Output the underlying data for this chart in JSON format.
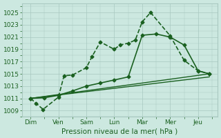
{
  "xlabel": "Pression niveau de la mer( hPa )",
  "days": [
    "Dim",
    "Ven",
    "Sam",
    "Lun",
    "Mar",
    "Mer",
    "Jeu"
  ],
  "xlim": [
    -0.3,
    6.7
  ],
  "ylim": [
    1008.0,
    1026.5
  ],
  "yticks": [
    1009,
    1011,
    1013,
    1015,
    1017,
    1019,
    1021,
    1023,
    1025
  ],
  "background_color": "#cce8e0",
  "grid_color": "#a8c8c0",
  "line_color": "#1a6020",
  "lines": [
    {
      "x": [
        0.0,
        0.2,
        0.45,
        1.0,
        1.2,
        1.5,
        2.0,
        2.2,
        2.5,
        3.0,
        3.2,
        3.5,
        3.75,
        4.0,
        4.3,
        5.0,
        5.5,
        6.0,
        6.4
      ],
      "y": [
        1011.0,
        1010.2,
        1009.2,
        1011.2,
        1014.7,
        1014.8,
        1016.0,
        1017.8,
        1020.2,
        1019.0,
        1019.7,
        1020.0,
        1020.5,
        1023.5,
        1025.0,
        1021.2,
        1017.2,
        1015.5,
        1015.0
      ],
      "color": "#1a6020",
      "linewidth": 1.2,
      "linestyle": "--",
      "marker": "D",
      "markersize": 2.5
    },
    {
      "x": [
        0.0,
        0.5,
        1.0,
        1.5,
        2.0,
        2.5,
        3.0,
        3.5,
        4.0,
        4.5,
        5.0,
        5.5,
        6.0,
        6.4
      ],
      "y": [
        1011.0,
        1011.1,
        1011.5,
        1012.2,
        1013.0,
        1013.5,
        1014.0,
        1014.5,
        1021.3,
        1021.5,
        1021.0,
        1019.7,
        1015.5,
        1015.0
      ],
      "color": "#1a6020",
      "linewidth": 1.2,
      "linestyle": "-",
      "marker": "D",
      "markersize": 2.5
    },
    {
      "x": [
        0.0,
        6.4
      ],
      "y": [
        1011.0,
        1015.0
      ],
      "color": "#1a6020",
      "linewidth": 1.0,
      "linestyle": "-",
      "marker": null,
      "markersize": 0
    },
    {
      "x": [
        0.0,
        6.4
      ],
      "y": [
        1011.0,
        1014.5
      ],
      "color": "#1a6020",
      "linewidth": 1.0,
      "linestyle": "-",
      "marker": null,
      "markersize": 0
    }
  ]
}
